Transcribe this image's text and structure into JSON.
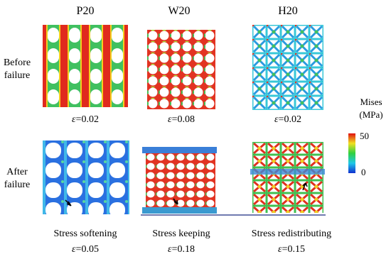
{
  "columns": [
    "P20",
    "W20",
    "H20"
  ],
  "strain_symbol": "ε",
  "rows": [
    {
      "label": [
        "Before",
        "failure"
      ],
      "strains": [
        "=0.02",
        "=0.08",
        "=0.02"
      ]
    },
    {
      "label": [
        "After",
        "failure"
      ],
      "notes": [
        "Stress softening",
        "Stress keeping",
        "Stress redistributing"
      ],
      "strains": [
        "=0.05",
        "=0.18",
        "=0.15"
      ]
    }
  ],
  "colorbar": {
    "title": [
      "Mises",
      "(MPa)"
    ],
    "max": 50,
    "min": 0
  }
}
